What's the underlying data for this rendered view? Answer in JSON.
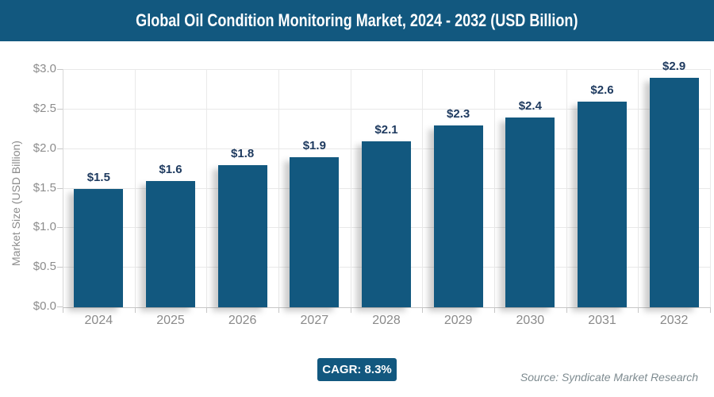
{
  "title_bar": {
    "title": "Global Oil Condition Monitoring Market, 2024 - 2032 (USD Billion)"
  },
  "chart_data": {
    "type": "bar",
    "title": "Global Oil Condition Monitoring Market, 2024 - 2032 (USD Billion)",
    "categories": [
      "2024",
      "2025",
      "2026",
      "2027",
      "2028",
      "2029",
      "2030",
      "2031",
      "2032"
    ],
    "values": [
      1.5,
      1.6,
      1.8,
      1.9,
      2.1,
      2.3,
      2.4,
      2.6,
      2.9
    ],
    "bar_labels": [
      "$1.5",
      "$1.6",
      "$1.8",
      "$1.9",
      "$2.1",
      "$2.3",
      "$2.4",
      "$2.6",
      "$2.9"
    ],
    "xlabel": "",
    "ylabel": "Market Size (USD Billion)",
    "ylim": [
      0,
      3.0
    ],
    "yticks": {
      "values": [
        0,
        0.5,
        1.0,
        1.5,
        2.0,
        2.5,
        3.0
      ],
      "labels": [
        "$0.0",
        "$0.5",
        "$1.0",
        "$1.5",
        "$2.0",
        "$2.5",
        "$3.0"
      ]
    },
    "grid": true,
    "legend": "none",
    "bar_color": "#12587f"
  },
  "footer": {
    "cagr_badge": "CAGR: 8.3%",
    "source_note": "Source: Syndicate Market Research"
  },
  "colors": {
    "accent_blue": "#12587f",
    "title_text": "#ffffff",
    "bar_label_text": "#1e3a5f",
    "axis_text": "#8c8c8c",
    "gridline": "#e8e8e8",
    "axis_line": "#c6c6c6",
    "source_text": "#7e8b90"
  }
}
